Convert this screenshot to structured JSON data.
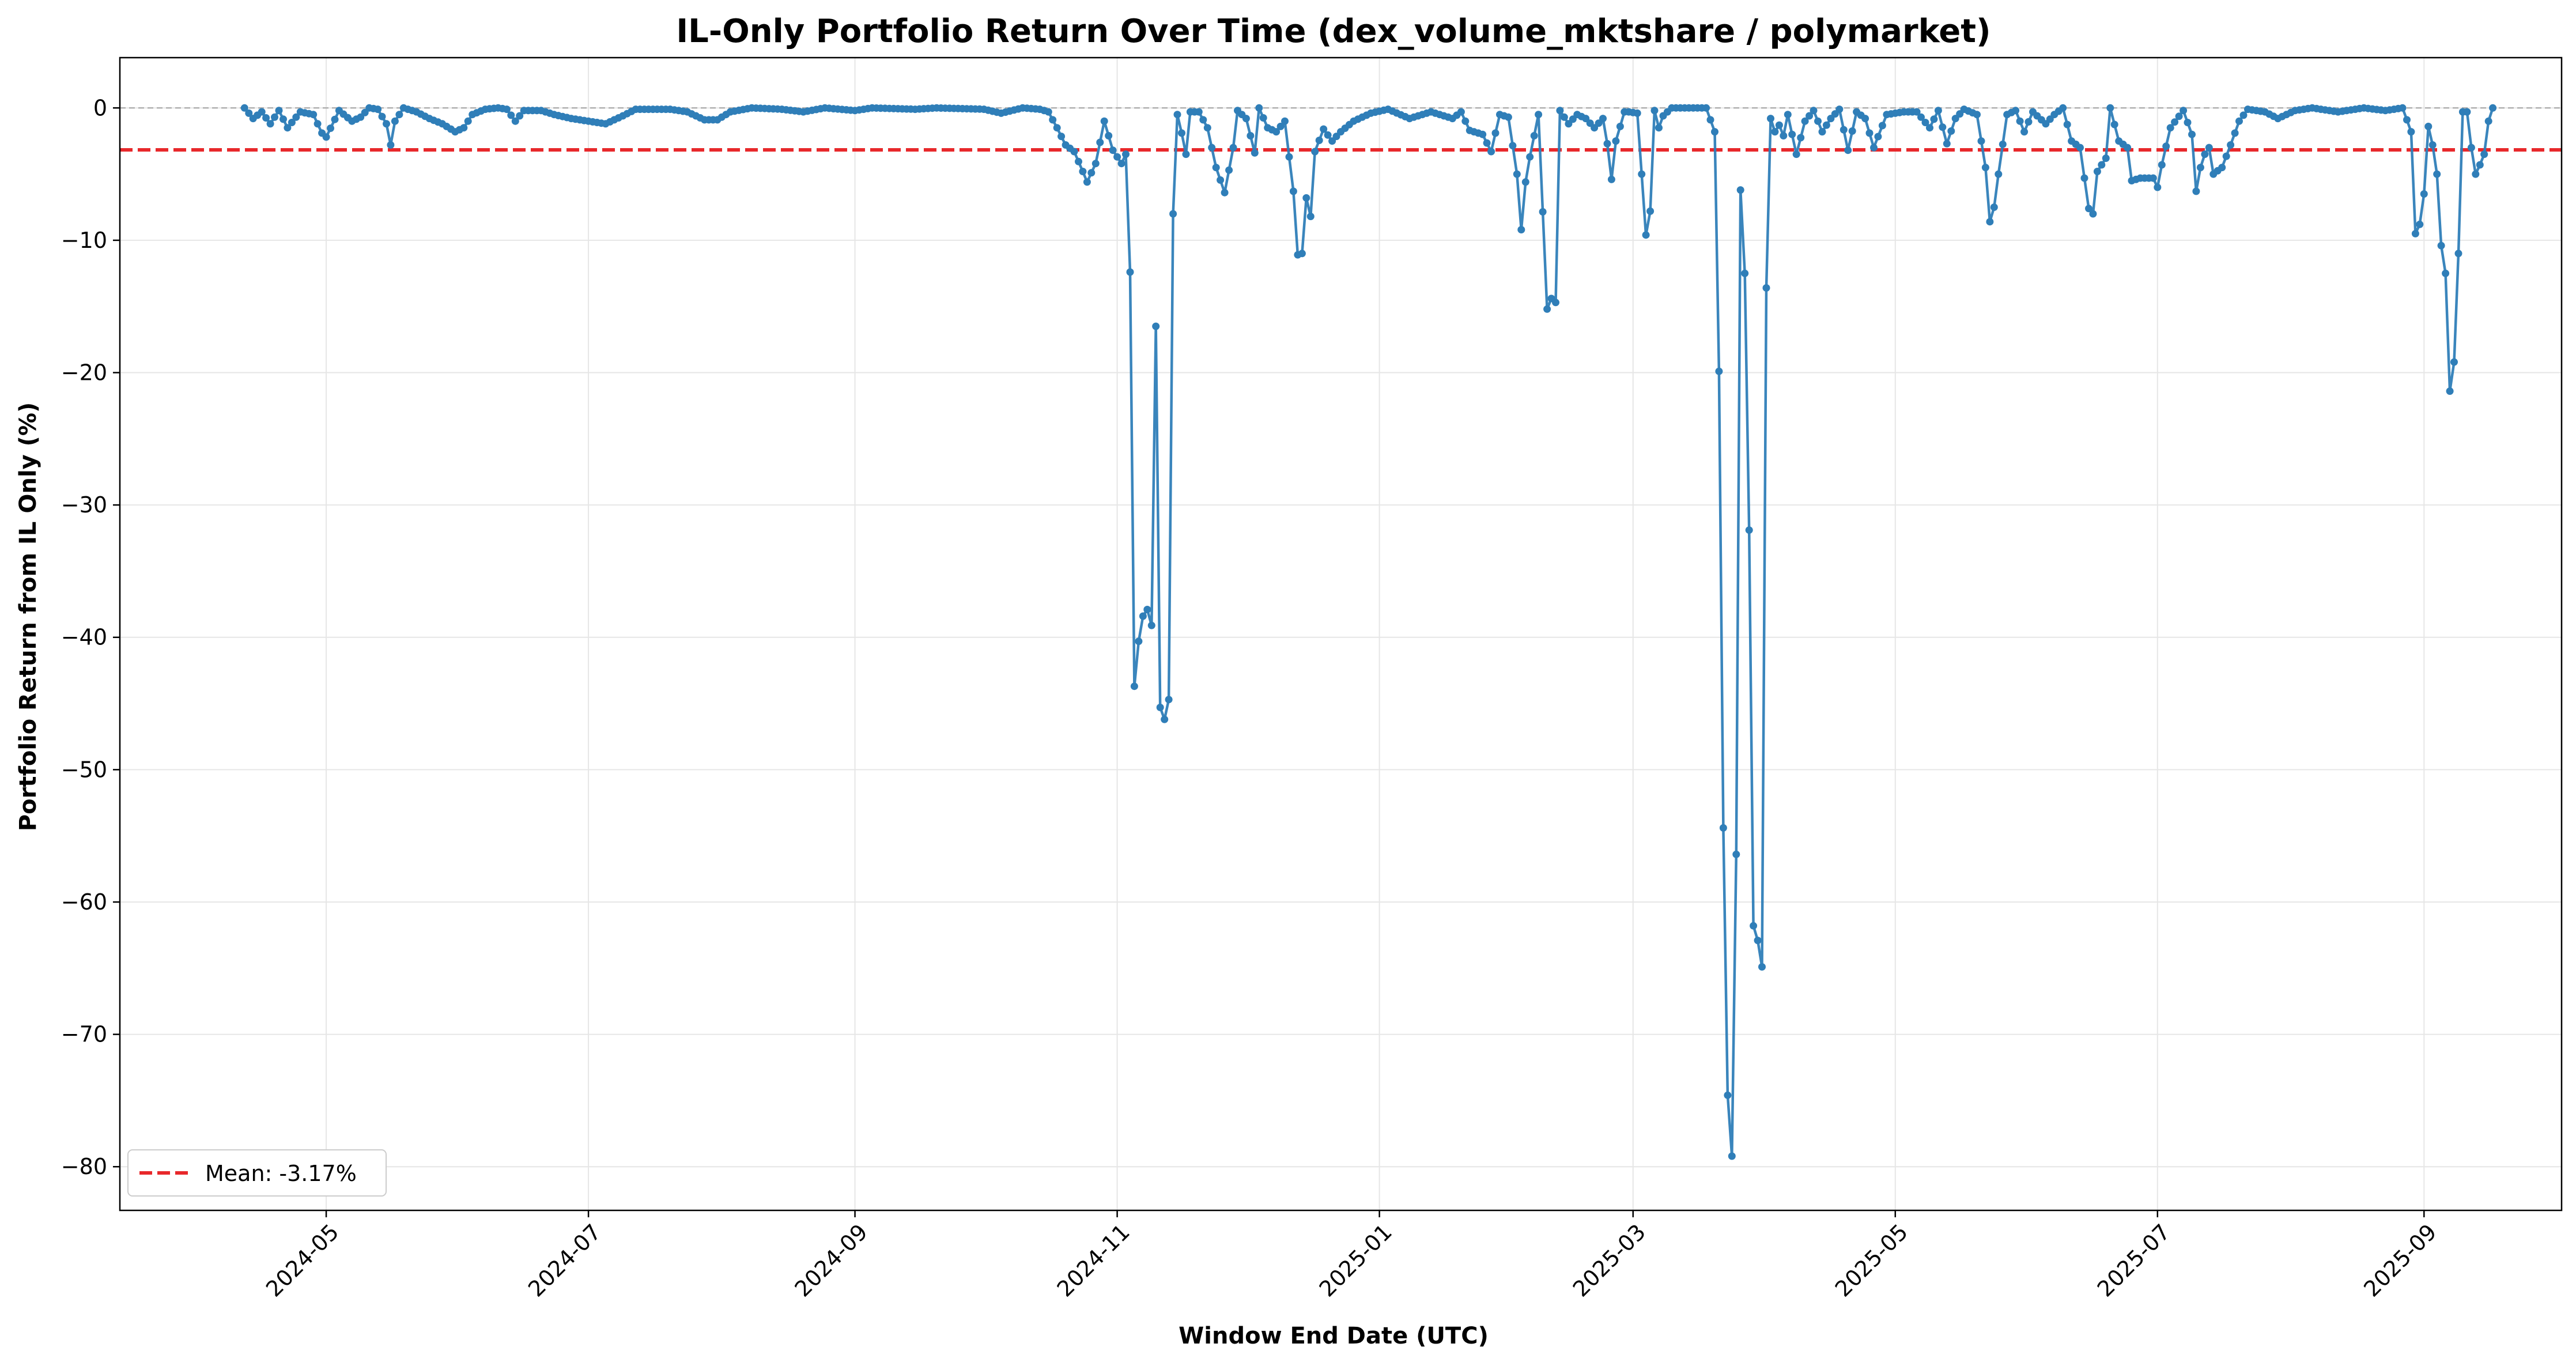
{
  "chart_data": {
    "type": "line",
    "title": "IL-Only Portfolio Return Over Time (dex_volume_mktshare / polymarket)",
    "xlabel": "Window End Date (UTC)",
    "ylabel": "Portfolio Return from IL Only (%)",
    "xlim": [
      "2024-03-14",
      "2025-10-03"
    ],
    "ylim": [
      -83.3,
      3.8
    ],
    "x_ticks": [
      "2024-05-01",
      "2024-07-01",
      "2024-09-01",
      "2024-11-01",
      "2025-01-01",
      "2025-03-01",
      "2025-05-01",
      "2025-07-01",
      "2025-09-01"
    ],
    "x_tick_labels": [
      "2024-05",
      "2024-07",
      "2024-09",
      "2024-11",
      "2025-01",
      "2025-03",
      "2025-05",
      "2025-07",
      "2025-09"
    ],
    "y_ticks": [
      0,
      -10,
      -20,
      -30,
      -40,
      -50,
      -60,
      -70,
      -80
    ],
    "y_tick_labels": [
      "0",
      "−10",
      "−20",
      "−30",
      "−40",
      "−50",
      "−60",
      "−70",
      "−80"
    ],
    "grid": true,
    "legend": {
      "position": "lower-left",
      "entries": [
        "Mean: -3.17%"
      ]
    },
    "mean_line": {
      "value": -3.17,
      "label": "Mean: -3.17%",
      "color": "#e8282b",
      "style": "dashed"
    },
    "zero_line": {
      "value": 0,
      "color": "#b0b0b0",
      "style": "dashed"
    },
    "series_color": "#2f7eb8",
    "anchors": [
      [
        "2024-04-12",
        0
      ],
      [
        "2024-04-14",
        -0.8
      ],
      [
        "2024-04-16",
        -0.3
      ],
      [
        "2024-04-18",
        -1.2
      ],
      [
        "2024-04-20",
        -0.2
      ],
      [
        "2024-04-22",
        -1.5
      ],
      [
        "2024-04-25",
        -0.3
      ],
      [
        "2024-04-28",
        -0.5
      ],
      [
        "2024-04-30",
        -1.9
      ],
      [
        "2024-05-01",
        -2.2
      ],
      [
        "2024-05-04",
        -0.2
      ],
      [
        "2024-05-07",
        -1.0
      ],
      [
        "2024-05-09",
        -0.7
      ],
      [
        "2024-05-11",
        0
      ],
      [
        "2024-05-13",
        -0.1
      ],
      [
        "2024-05-15",
        -1.2
      ],
      [
        "2024-05-16",
        -2.8
      ],
      [
        "2024-05-17",
        -1.0
      ],
      [
        "2024-05-19",
        0
      ],
      [
        "2024-05-22",
        -0.3
      ],
      [
        "2024-05-25",
        -0.8
      ],
      [
        "2024-05-28",
        -1.2
      ],
      [
        "2024-05-31",
        -1.8
      ],
      [
        "2024-06-02",
        -1.5
      ],
      [
        "2024-06-04",
        -0.5
      ],
      [
        "2024-06-07",
        -0.1
      ],
      [
        "2024-06-10",
        0
      ],
      [
        "2024-06-12",
        -0.1
      ],
      [
        "2024-06-14",
        -1.0
      ],
      [
        "2024-06-16",
        -0.2
      ],
      [
        "2024-06-20",
        -0.2
      ],
      [
        "2024-06-23",
        -0.5
      ],
      [
        "2024-06-27",
        -0.8
      ],
      [
        "2024-07-01",
        -1.0
      ],
      [
        "2024-07-05",
        -1.2
      ],
      [
        "2024-07-09",
        -0.6
      ],
      [
        "2024-07-12",
        -0.1
      ],
      [
        "2024-07-20",
        -0.1
      ],
      [
        "2024-07-24",
        -0.3
      ],
      [
        "2024-07-28",
        -0.9
      ],
      [
        "2024-07-31",
        -0.9
      ],
      [
        "2024-08-03",
        -0.3
      ],
      [
        "2024-08-08",
        0
      ],
      [
        "2024-08-15",
        -0.1
      ],
      [
        "2024-08-20",
        -0.3
      ],
      [
        "2024-08-25",
        0
      ],
      [
        "2024-09-01",
        -0.2
      ],
      [
        "2024-09-05",
        0
      ],
      [
        "2024-09-15",
        -0.1
      ],
      [
        "2024-09-20",
        0
      ],
      [
        "2024-10-01",
        -0.1
      ],
      [
        "2024-10-05",
        -0.4
      ],
      [
        "2024-10-10",
        0
      ],
      [
        "2024-10-14",
        -0.1
      ],
      [
        "2024-10-16",
        -0.3
      ],
      [
        "2024-10-18",
        -1.5
      ],
      [
        "2024-10-20",
        -2.8
      ],
      [
        "2024-10-22",
        -3.3
      ],
      [
        "2024-10-24",
        -4.8
      ],
      [
        "2024-10-25",
        -5.6
      ],
      [
        "2024-10-27",
        -4.2
      ],
      [
        "2024-10-29",
        -1.0
      ],
      [
        "2024-10-31",
        -3.2
      ],
      [
        "2024-11-02",
        -4.2
      ],
      [
        "2024-11-03",
        -3.5
      ],
      [
        "2024-11-04",
        -12.4
      ],
      [
        "2024-11-05",
        -43.7
      ],
      [
        "2024-11-06",
        -40.3
      ],
      [
        "2024-11-07",
        -38.4
      ],
      [
        "2024-11-08",
        -37.9
      ],
      [
        "2024-11-09",
        -39.1
      ],
      [
        "2024-11-10",
        -16.5
      ],
      [
        "2024-11-11",
        -45.3
      ],
      [
        "2024-11-12",
        -46.2
      ],
      [
        "2024-11-13",
        -44.7
      ],
      [
        "2024-11-14",
        -8.0
      ],
      [
        "2024-11-15",
        -0.5
      ],
      [
        "2024-11-16",
        -1.9
      ],
      [
        "2024-11-17",
        -3.5
      ],
      [
        "2024-11-18",
        -0.3
      ],
      [
        "2024-11-20",
        -0.3
      ],
      [
        "2024-11-22",
        -1.5
      ],
      [
        "2024-11-24",
        -4.5
      ],
      [
        "2024-11-26",
        -6.4
      ],
      [
        "2024-11-28",
        -3.0
      ],
      [
        "2024-11-29",
        -0.2
      ],
      [
        "2024-12-01",
        -0.8
      ],
      [
        "2024-12-03",
        -3.4
      ],
      [
        "2024-12-04",
        0
      ],
      [
        "2024-12-06",
        -1.5
      ],
      [
        "2024-12-08",
        -1.8
      ],
      [
        "2024-12-10",
        -1.0
      ],
      [
        "2024-12-11",
        -3.7
      ],
      [
        "2024-12-12",
        -6.3
      ],
      [
        "2024-12-13",
        -11.1
      ],
      [
        "2024-12-14",
        -11.0
      ],
      [
        "2024-12-15",
        -6.8
      ],
      [
        "2024-12-16",
        -8.2
      ],
      [
        "2024-12-17",
        -3.3
      ],
      [
        "2024-12-19",
        -1.6
      ],
      [
        "2024-12-21",
        -2.5
      ],
      [
        "2024-12-23",
        -1.8
      ],
      [
        "2024-12-26",
        -1.0
      ],
      [
        "2024-12-30",
        -0.4
      ],
      [
        "2025-01-03",
        -0.1
      ],
      [
        "2025-01-08",
        -0.8
      ],
      [
        "2025-01-13",
        -0.3
      ],
      [
        "2025-01-18",
        -0.8
      ],
      [
        "2025-01-20",
        -0.3
      ],
      [
        "2025-01-22",
        -1.7
      ],
      [
        "2025-01-25",
        -2.0
      ],
      [
        "2025-01-27",
        -3.3
      ],
      [
        "2025-01-29",
        -0.5
      ],
      [
        "2025-01-31",
        -0.7
      ],
      [
        "2025-02-02",
        -5.0
      ],
      [
        "2025-02-03",
        -9.2
      ],
      [
        "2025-02-04",
        -5.6
      ],
      [
        "2025-02-05",
        -3.7
      ],
      [
        "2025-02-07",
        -0.5
      ],
      [
        "2025-02-09",
        -15.2
      ],
      [
        "2025-02-10",
        -14.4
      ],
      [
        "2025-02-11",
        -14.7
      ],
      [
        "2025-02-12",
        -0.2
      ],
      [
        "2025-02-14",
        -1.2
      ],
      [
        "2025-02-16",
        -0.5
      ],
      [
        "2025-02-18",
        -0.8
      ],
      [
        "2025-02-20",
        -1.5
      ],
      [
        "2025-02-22",
        -0.8
      ],
      [
        "2025-02-23",
        -2.7
      ],
      [
        "2025-02-24",
        -5.4
      ],
      [
        "2025-02-25",
        -2.5
      ],
      [
        "2025-02-27",
        -0.3
      ],
      [
        "2025-02-28",
        -0.3
      ],
      [
        "2025-03-02",
        -0.4
      ],
      [
        "2025-03-04",
        -9.6
      ],
      [
        "2025-03-05",
        -7.8
      ],
      [
        "2025-03-06",
        -0.2
      ],
      [
        "2025-03-07",
        -1.5
      ],
      [
        "2025-03-08",
        -0.6
      ],
      [
        "2025-03-10",
        0
      ],
      [
        "2025-03-18",
        0
      ],
      [
        "2025-03-20",
        -1.8
      ],
      [
        "2025-03-21",
        -19.9
      ],
      [
        "2025-03-22",
        -54.4
      ],
      [
        "2025-03-23",
        -74.6
      ],
      [
        "2025-03-24",
        -79.2
      ],
      [
        "2025-03-25",
        -56.4
      ],
      [
        "2025-03-26",
        -6.2
      ],
      [
        "2025-03-27",
        -12.5
      ],
      [
        "2025-03-28",
        -31.9
      ],
      [
        "2025-03-29",
        -61.8
      ],
      [
        "2025-03-30",
        -62.9
      ],
      [
        "2025-03-31",
        -64.9
      ],
      [
        "2025-04-01",
        -13.6
      ],
      [
        "2025-04-02",
        -0.8
      ],
      [
        "2025-04-03",
        -1.8
      ],
      [
        "2025-04-04",
        -1.3
      ],
      [
        "2025-04-05",
        -2.1
      ],
      [
        "2025-04-06",
        -0.5
      ],
      [
        "2025-04-08",
        -3.5
      ],
      [
        "2025-04-10",
        -1.0
      ],
      [
        "2025-04-12",
        -0.2
      ],
      [
        "2025-04-14",
        -1.8
      ],
      [
        "2025-04-16",
        -0.8
      ],
      [
        "2025-04-18",
        -0.1
      ],
      [
        "2025-04-20",
        -3.2
      ],
      [
        "2025-04-22",
        -0.3
      ],
      [
        "2025-04-24",
        -0.8
      ],
      [
        "2025-04-26",
        -3.0
      ],
      [
        "2025-04-29",
        -0.5
      ],
      [
        "2025-05-03",
        -0.3
      ],
      [
        "2025-05-06",
        -0.3
      ],
      [
        "2025-05-09",
        -1.5
      ],
      [
        "2025-05-11",
        -0.2
      ],
      [
        "2025-05-13",
        -2.7
      ],
      [
        "2025-05-15",
        -0.8
      ],
      [
        "2025-05-17",
        -0.1
      ],
      [
        "2025-05-20",
        -0.5
      ],
      [
        "2025-05-22",
        -4.5
      ],
      [
        "2025-05-23",
        -8.6
      ],
      [
        "2025-05-24",
        -7.5
      ],
      [
        "2025-05-25",
        -5.0
      ],
      [
        "2025-05-27",
        -0.5
      ],
      [
        "2025-05-29",
        -0.2
      ],
      [
        "2025-05-31",
        -1.8
      ],
      [
        "2025-06-02",
        -0.3
      ],
      [
        "2025-06-05",
        -1.2
      ],
      [
        "2025-06-07",
        -0.5
      ],
      [
        "2025-06-09",
        0
      ],
      [
        "2025-06-11",
        -2.5
      ],
      [
        "2025-06-13",
        -3.0
      ],
      [
        "2025-06-14",
        -5.3
      ],
      [
        "2025-06-15",
        -7.6
      ],
      [
        "2025-06-16",
        -8.0
      ],
      [
        "2025-06-17",
        -4.8
      ],
      [
        "2025-06-19",
        -3.8
      ],
      [
        "2025-06-20",
        0
      ],
      [
        "2025-06-22",
        -2.5
      ],
      [
        "2025-06-24",
        -3.0
      ],
      [
        "2025-06-25",
        -5.5
      ],
      [
        "2025-06-27",
        -5.3
      ],
      [
        "2025-06-30",
        -5.3
      ],
      [
        "2025-07-01",
        -6.0
      ],
      [
        "2025-07-02",
        -4.3
      ],
      [
        "2025-07-04",
        -1.5
      ],
      [
        "2025-07-07",
        -0.2
      ],
      [
        "2025-07-09",
        -2.0
      ],
      [
        "2025-07-10",
        -6.3
      ],
      [
        "2025-07-11",
        -4.5
      ],
      [
        "2025-07-12",
        -3.5
      ],
      [
        "2025-07-13",
        -3.0
      ],
      [
        "2025-07-14",
        -5.0
      ],
      [
        "2025-07-16",
        -4.5
      ],
      [
        "2025-07-18",
        -2.8
      ],
      [
        "2025-07-20",
        -1.0
      ],
      [
        "2025-07-22",
        -0.1
      ],
      [
        "2025-07-26",
        -0.3
      ],
      [
        "2025-07-29",
        -0.8
      ],
      [
        "2025-08-02",
        -0.2
      ],
      [
        "2025-08-06",
        0
      ],
      [
        "2025-08-12",
        -0.3
      ],
      [
        "2025-08-18",
        0
      ],
      [
        "2025-08-23",
        -0.2
      ],
      [
        "2025-08-27",
        0
      ],
      [
        "2025-08-29",
        -1.8
      ],
      [
        "2025-08-30",
        -9.5
      ],
      [
        "2025-08-31",
        -8.8
      ],
      [
        "2025-09-01",
        -6.5
      ],
      [
        "2025-09-02",
        -1.4
      ],
      [
        "2025-09-03",
        -2.8
      ],
      [
        "2025-09-04",
        -5.0
      ],
      [
        "2025-09-05",
        -10.4
      ],
      [
        "2025-09-06",
        -12.5
      ],
      [
        "2025-09-07",
        -21.4
      ],
      [
        "2025-09-08",
        -19.2
      ],
      [
        "2025-09-09",
        -11.0
      ],
      [
        "2025-09-10",
        -0.3
      ],
      [
        "2025-09-11",
        -0.3
      ],
      [
        "2025-09-12",
        -3.0
      ],
      [
        "2025-09-13",
        -5.0
      ],
      [
        "2025-09-14",
        -4.3
      ],
      [
        "2025-09-15",
        -3.5
      ],
      [
        "2025-09-16",
        -1.0
      ],
      [
        "2025-09-17",
        0
      ]
    ]
  }
}
